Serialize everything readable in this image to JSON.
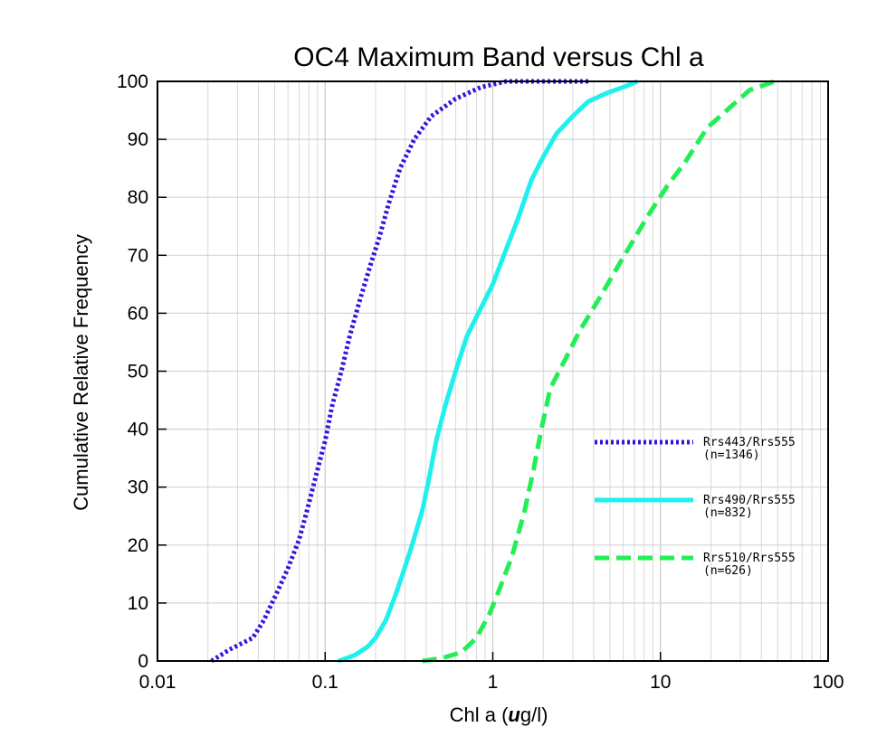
{
  "chart_data": {
    "type": "line",
    "title": "OC4   Maximum Band versus Chl a",
    "xlabel_prefix": "Chl a (",
    "xlabel_unit_italic": "u",
    "xlabel_suffix": "g/l)",
    "ylabel": "Cumulative Relative Frequency",
    "xscale": "log",
    "xlim": [
      0.01,
      100
    ],
    "ylim": [
      0,
      100
    ],
    "grid": true,
    "legend_position": "right",
    "x_ticks": [
      {
        "value": 0.01,
        "label": "0.01"
      },
      {
        "value": 0.1,
        "label": "0.1"
      },
      {
        "value": 1,
        "label": "1"
      },
      {
        "value": 10,
        "label": "10"
      },
      {
        "value": 100,
        "label": "100"
      }
    ],
    "y_ticks": [
      {
        "value": 0,
        "label": "0"
      },
      {
        "value": 10,
        "label": "10"
      },
      {
        "value": 20,
        "label": "20"
      },
      {
        "value": 30,
        "label": "30"
      },
      {
        "value": 40,
        "label": "40"
      },
      {
        "value": 50,
        "label": "50"
      },
      {
        "value": 60,
        "label": "60"
      },
      {
        "value": 70,
        "label": "70"
      },
      {
        "value": 80,
        "label": "80"
      },
      {
        "value": 90,
        "label": "90"
      },
      {
        "value": 100,
        "label": "100"
      }
    ],
    "series": [
      {
        "name": "Rrs443/Rrs555",
        "count_label": "(n=1346)",
        "color": "#3a10e0",
        "style": "dotted",
        "points": [
          [
            0.021,
            0
          ],
          [
            0.027,
            2
          ],
          [
            0.037,
            4
          ],
          [
            0.043,
            7
          ],
          [
            0.052,
            12
          ],
          [
            0.06,
            16
          ],
          [
            0.07,
            21
          ],
          [
            0.078,
            26
          ],
          [
            0.09,
            33
          ],
          [
            0.1,
            38
          ],
          [
            0.11,
            44
          ],
          [
            0.125,
            50
          ],
          [
            0.14,
            56
          ],
          [
            0.16,
            62
          ],
          [
            0.185,
            68
          ],
          [
            0.21,
            73
          ],
          [
            0.24,
            79
          ],
          [
            0.28,
            85
          ],
          [
            0.34,
            90
          ],
          [
            0.43,
            94
          ],
          [
            0.6,
            97
          ],
          [
            0.85,
            99
          ],
          [
            1.2,
            100
          ],
          [
            2.0,
            100
          ],
          [
            3.8,
            100
          ]
        ]
      },
      {
        "name": "Rrs490/Rrs555",
        "count_label": "(n=832)",
        "color": "#1ff0ee",
        "style": "solid",
        "points": [
          [
            0.12,
            0
          ],
          [
            0.15,
            1
          ],
          [
            0.18,
            2.5
          ],
          [
            0.2,
            4
          ],
          [
            0.23,
            7
          ],
          [
            0.26,
            11
          ],
          [
            0.29,
            15
          ],
          [
            0.33,
            20
          ],
          [
            0.38,
            26
          ],
          [
            0.42,
            32
          ],
          [
            0.46,
            38
          ],
          [
            0.52,
            44
          ],
          [
            0.6,
            50
          ],
          [
            0.7,
            56
          ],
          [
            0.82,
            60
          ],
          [
            1.0,
            65
          ],
          [
            1.2,
            71
          ],
          [
            1.4,
            76
          ],
          [
            1.7,
            83
          ],
          [
            2.0,
            87
          ],
          [
            2.4,
            91
          ],
          [
            3.0,
            94
          ],
          [
            3.7,
            96.5
          ],
          [
            4.8,
            98
          ],
          [
            6.0,
            99
          ],
          [
            7.3,
            100
          ]
        ]
      },
      {
        "name": "Rrs510/Rrs555",
        "count_label": "(n=626)",
        "color": "#22ee55",
        "style": "dashed",
        "points": [
          [
            0.38,
            0
          ],
          [
            0.5,
            0.5
          ],
          [
            0.65,
            1.5
          ],
          [
            0.8,
            4
          ],
          [
            0.95,
            8
          ],
          [
            1.05,
            11
          ],
          [
            1.3,
            18
          ],
          [
            1.55,
            26
          ],
          [
            1.75,
            33
          ],
          [
            1.95,
            40
          ],
          [
            2.2,
            47
          ],
          [
            2.7,
            52
          ],
          [
            3.3,
            57
          ],
          [
            4.2,
            62
          ],
          [
            5.3,
            67
          ],
          [
            6.7,
            72
          ],
          [
            8.5,
            77
          ],
          [
            11,
            82
          ],
          [
            14,
            86
          ],
          [
            19,
            92
          ],
          [
            26,
            95.5
          ],
          [
            34,
            98.5
          ],
          [
            48,
            100
          ]
        ]
      }
    ]
  }
}
